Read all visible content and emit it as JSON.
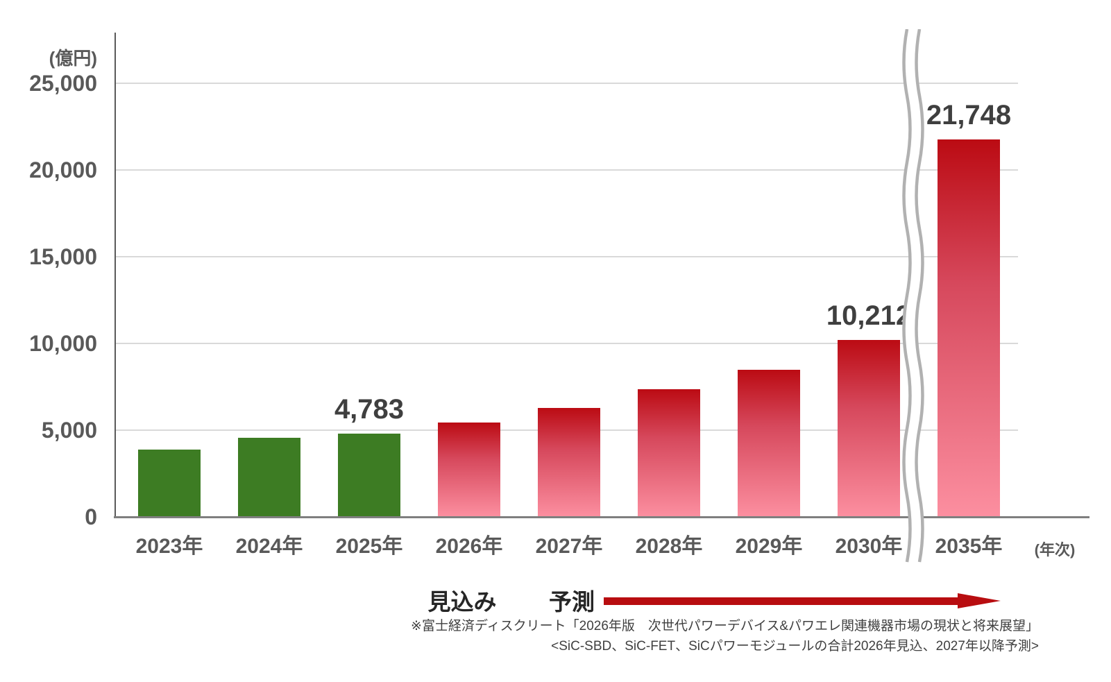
{
  "chart_data": {
    "type": "bar",
    "title": "",
    "ylabel": "(億円)",
    "xlabel": "(年次)",
    "ylim": [
      0,
      25000
    ],
    "grid": true,
    "legend_position": "none",
    "yticks": [
      {
        "value": 25000,
        "label": "25,000"
      },
      {
        "value": 20000,
        "label": "20,000"
      },
      {
        "value": 15000,
        "label": "15,000"
      },
      {
        "value": 10000,
        "label": "10,000"
      },
      {
        "value": 5000,
        "label": "5,000"
      },
      {
        "value": 0,
        "label": "0"
      }
    ],
    "categories": [
      "2023年",
      "2024年",
      "2025年",
      "2026年",
      "2027年",
      "2028年",
      "2029年",
      "2030年",
      "2035年"
    ],
    "values": [
      3900,
      4550,
      4783,
      5450,
      6300,
      7350,
      8500,
      10212,
      21748
    ],
    "bar_styles": [
      "actual",
      "actual",
      "actual",
      "forecast",
      "forecast",
      "forecast",
      "forecast",
      "forecast",
      "forecast"
    ],
    "data_labels": [
      {
        "category_index": 2,
        "text": "4,783"
      },
      {
        "category_index": 7,
        "text": "10,212"
      },
      {
        "category_index": 8,
        "text": "21,748"
      }
    ],
    "axis_break_between": [
      "2030年",
      "2035年"
    ]
  },
  "annotations": {
    "estimate_label": "見込み",
    "forecast_label": "予測"
  },
  "source": {
    "line1": "※富士経済ディスクリート「2026年版　次世代パワーデバイス&パワエレ関連機器市場の現状と将来展望」",
    "line2": "<SiC-SBD、SiC-FET、SiCパワーモジュールの合計2026年見込、2027年以降予測>"
  },
  "colors": {
    "actual_bar": "#3d7c23",
    "forecast_bar_top": "#bb0b13",
    "forecast_bar_mid": "#d6485c",
    "forecast_bar_bottom": "#fc8fa0",
    "arrow": "#b80d10",
    "gridline": "#d9d9d9",
    "y_axis": "#595959",
    "x_axis": "#7f7f7f",
    "tick_text": "#595959",
    "data_label_text": "#3f3f3f",
    "phase_text": "#262626",
    "source_text": "#404040",
    "break_line": "#b1b1b1"
  }
}
